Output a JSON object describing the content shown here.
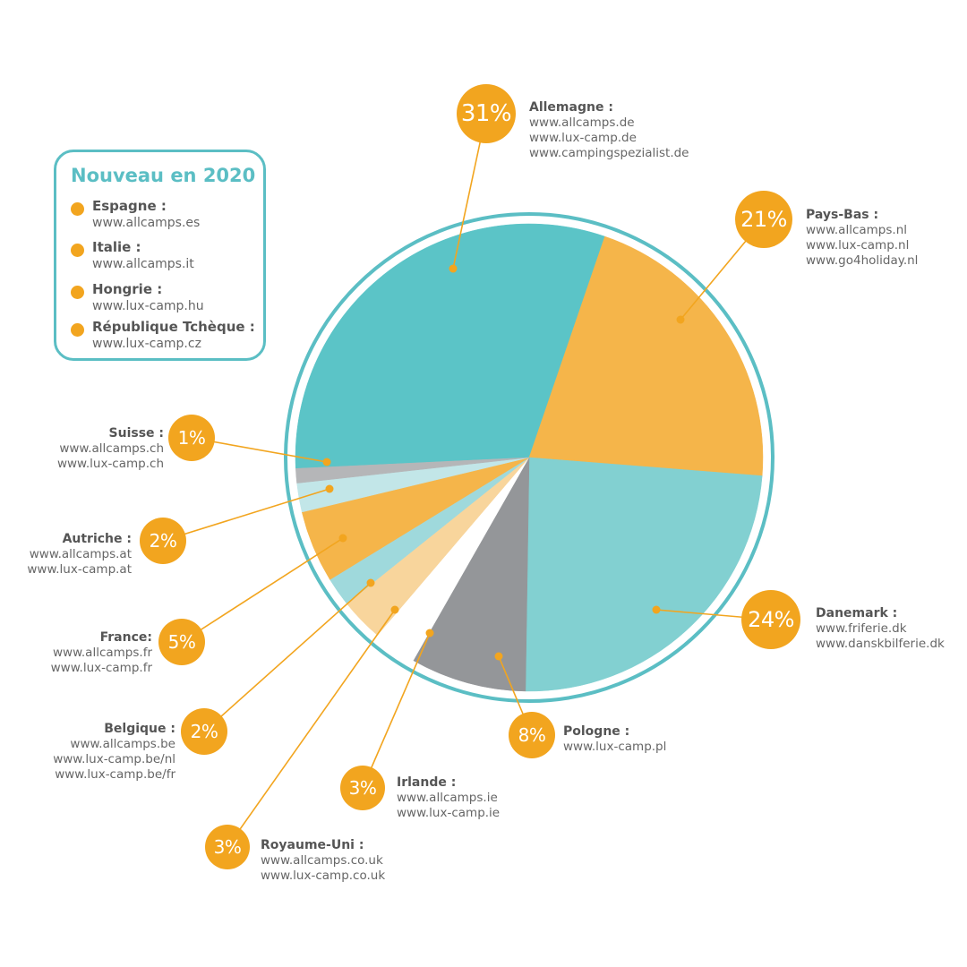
{
  "chart_data": {
    "type": "pie",
    "title": "",
    "legend": "labels around the pie",
    "slices": [
      {
        "country": "Allemagne :",
        "value": 31,
        "label": "31%",
        "color": "#5bc4c7",
        "sites": [
          "www.allcamps.de",
          "www.lux-camp.de",
          "www.campingspezialist.de"
        ]
      },
      {
        "country": "Pays-Bas :",
        "value": 21,
        "label": "21%",
        "color": "#f5b54a",
        "sites": [
          "www.allcamps.nl",
          "www.lux-camp.nl",
          "www.go4holiday.nl"
        ]
      },
      {
        "country": "Danemark :",
        "value": 24,
        "label": "24%",
        "color": "#82d0d1",
        "sites": [
          "www.friferie.dk",
          "www.danskbilferie.dk"
        ]
      },
      {
        "country": "Pologne :",
        "value": 8,
        "label": "8%",
        "color": "#949699",
        "sites": [
          "www.lux-camp.pl"
        ]
      },
      {
        "country": "Irlande :",
        "value": 3,
        "label": "3%",
        "color": "#ffffff",
        "sites": [
          "www.allcamps.ie",
          "www.lux-camp.ie"
        ]
      },
      {
        "country": "Royaume-Uni :",
        "value": 3,
        "label": "3%",
        "color": "#f8d59c",
        "sites": [
          "www.allcamps.co.uk",
          "www.lux-camp.co.uk"
        ]
      },
      {
        "country": "Belgique :",
        "value": 2,
        "label": "2%",
        "color": "#9fd9dc",
        "sites": [
          "www.allcamps.be",
          "www.lux-camp.be/nl",
          "www.lux-camp.be/fr"
        ]
      },
      {
        "country": "France:",
        "value": 5,
        "label": "5%",
        "color": "#f5b54a",
        "sites": [
          "www.allcamps.fr",
          "www.lux-camp.fr"
        ]
      },
      {
        "country": "Autriche :",
        "value": 2,
        "label": "2%",
        "color": "#c2e6e8",
        "sites": [
          "www.allcamps.at",
          "www.lux-camp.at"
        ]
      },
      {
        "country": "Suisse :",
        "value": 1,
        "label": "1%",
        "color": "#b5b6b8",
        "sites": [
          "www.allcamps.ch",
          "www.lux-camp.ch"
        ]
      }
    ]
  },
  "new_2020": {
    "title": "Nouveau en 2020",
    "items": [
      {
        "country": "Espagne :",
        "site": "www.allcamps.es"
      },
      {
        "country": "Italie :",
        "site": "www.allcamps.it"
      },
      {
        "country": "Hongrie :",
        "site": "www.lux-camp.hu"
      },
      {
        "country": "République Tchèque :",
        "site": "www.lux-camp.cz"
      }
    ]
  },
  "colors": {
    "ring": "#5bbec4",
    "bubble": "#f2a51f",
    "box_border": "#5bbec4",
    "title": "#5bbec4"
  }
}
